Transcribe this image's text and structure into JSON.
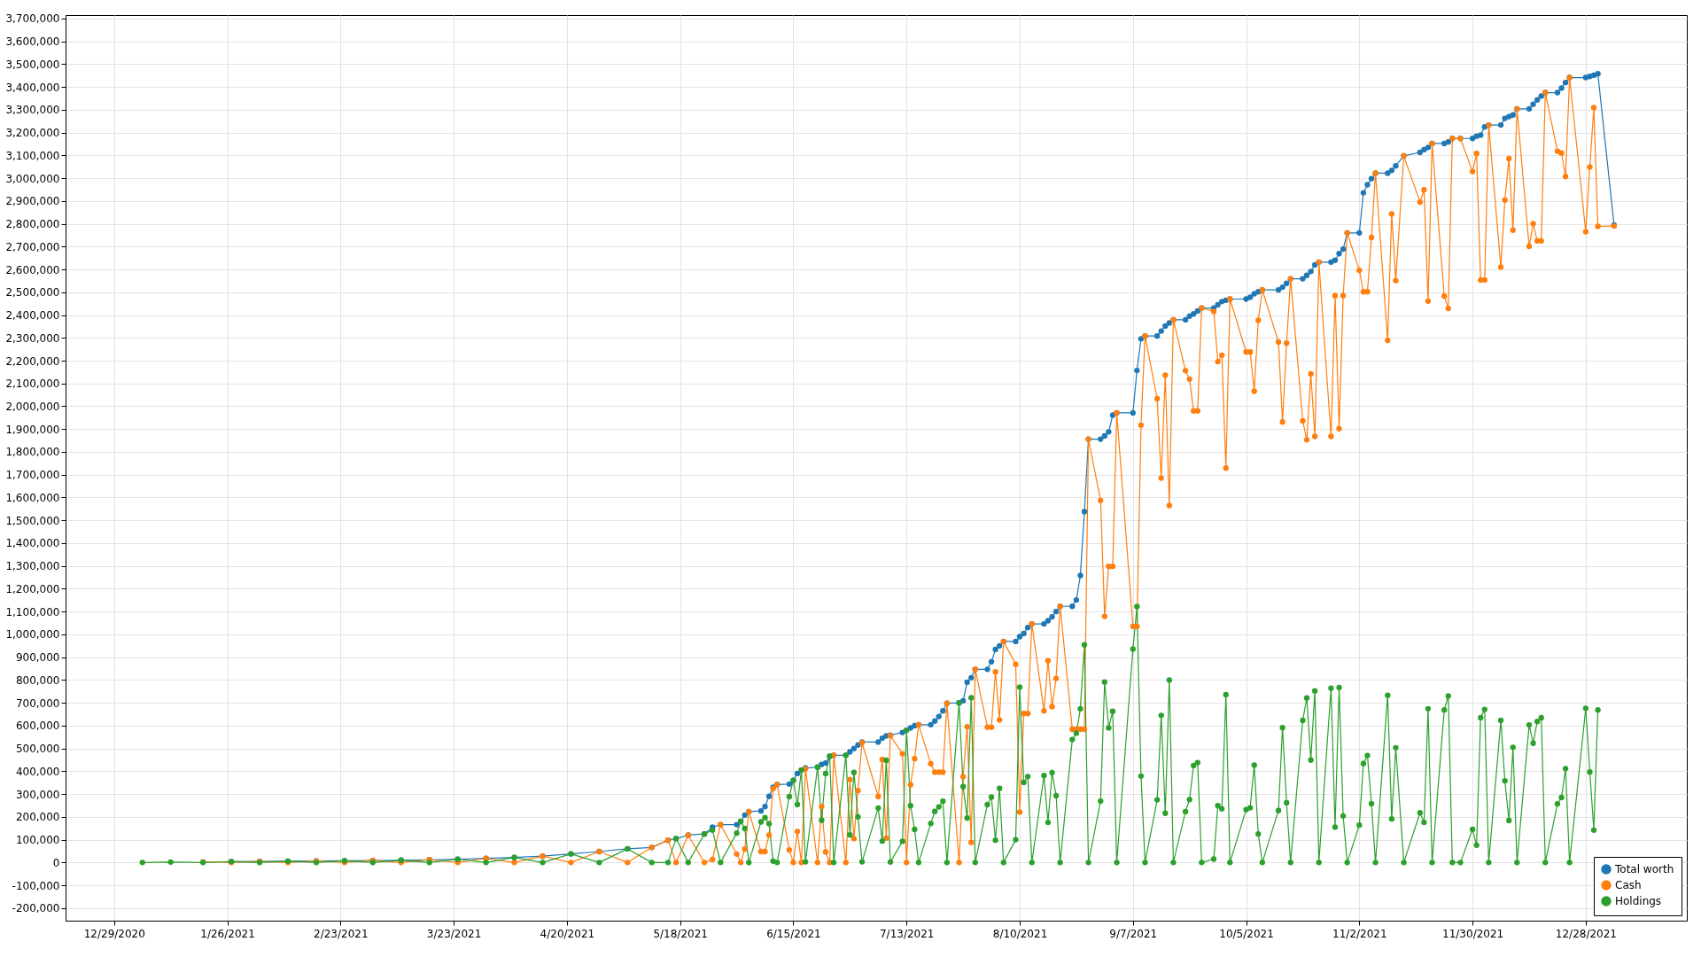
{
  "chart_data": {
    "type": "line",
    "marker": "circle",
    "line_style": "solid",
    "grid": true,
    "legend": "bottom right",
    "x": [
      "2021-01-05",
      "2021-01-12",
      "2021-01-20",
      "2021-01-27",
      "2021-02-03",
      "2021-02-10",
      "2021-02-17",
      "2021-02-24",
      "2021-03-03",
      "2021-03-10",
      "2021-03-17",
      "2021-03-24",
      "2021-03-31",
      "2021-04-07",
      "2021-04-14",
      "2021-04-21",
      "2021-04-28",
      "2021-05-05",
      "2021-05-11",
      "2021-05-15",
      "2021-05-17",
      "2021-05-20",
      "2021-05-24",
      "2021-05-26",
      "2021-05-28",
      "2021-06-01",
      "2021-06-02",
      "2021-06-03",
      "2021-06-04",
      "2021-06-07",
      "2021-06-08",
      "2021-06-09",
      "2021-06-10",
      "2021-06-11",
      "2021-06-14",
      "2021-06-15",
      "2021-06-16",
      "2021-06-17",
      "2021-06-18",
      "2021-06-21",
      "2021-06-22",
      "2021-06-23",
      "2021-06-24",
      "2021-06-25",
      "2021-06-28",
      "2021-06-29",
      "2021-06-30",
      "2021-07-01",
      "2021-07-02",
      "2021-07-06",
      "2021-07-07",
      "2021-07-08",
      "2021-07-09",
      "2021-07-12",
      "2021-07-13",
      "2021-07-14",
      "2021-07-15",
      "2021-07-16",
      "2021-07-19",
      "2021-07-20",
      "2021-07-21",
      "2021-07-22",
      "2021-07-23",
      "2021-07-26",
      "2021-07-27",
      "2021-07-28",
      "2021-07-29",
      "2021-07-30",
      "2021-08-02",
      "2021-08-03",
      "2021-08-04",
      "2021-08-05",
      "2021-08-06",
      "2021-08-09",
      "2021-08-10",
      "2021-08-11",
      "2021-08-12",
      "2021-08-13",
      "2021-08-16",
      "2021-08-17",
      "2021-08-18",
      "2021-08-19",
      "2021-08-20",
      "2021-08-23",
      "2021-08-24",
      "2021-08-25",
      "2021-08-26",
      "2021-08-27",
      "2021-08-30",
      "2021-08-31",
      "2021-09-01",
      "2021-09-02",
      "2021-09-03",
      "2021-09-07",
      "2021-09-08",
      "2021-09-09",
      "2021-09-10",
      "2021-09-13",
      "2021-09-14",
      "2021-09-15",
      "2021-09-16",
      "2021-09-17",
      "2021-09-20",
      "2021-09-21",
      "2021-09-22",
      "2021-09-23",
      "2021-09-24",
      "2021-09-27",
      "2021-09-28",
      "2021-09-29",
      "2021-09-30",
      "2021-10-01",
      "2021-10-05",
      "2021-10-06",
      "2021-10-07",
      "2021-10-08",
      "2021-10-09",
      "2021-10-13",
      "2021-10-14",
      "2021-10-15",
      "2021-10-16",
      "2021-10-19",
      "2021-10-20",
      "2021-10-21",
      "2021-10-22",
      "2021-10-23",
      "2021-10-26",
      "2021-10-27",
      "2021-10-28",
      "2021-10-29",
      "2021-10-30",
      "2021-11-02",
      "2021-11-03",
      "2021-11-04",
      "2021-11-05",
      "2021-11-06",
      "2021-11-09",
      "2021-11-10",
      "2021-11-11",
      "2021-11-13",
      "2021-11-17",
      "2021-11-18",
      "2021-11-19",
      "2021-11-20",
      "2021-11-23",
      "2021-11-24",
      "2021-11-25",
      "2021-11-27",
      "2021-11-30",
      "2021-12-01",
      "2021-12-02",
      "2021-12-03",
      "2021-12-04",
      "2021-12-07",
      "2021-12-08",
      "2021-12-09",
      "2021-12-10",
      "2021-12-11",
      "2021-12-14",
      "2021-12-15",
      "2021-12-16",
      "2021-12-17",
      "2021-12-18",
      "2021-12-21",
      "2021-12-22",
      "2021-12-23",
      "2021-12-24",
      "2021-12-28",
      "2021-12-29",
      "2021-12-30",
      "2021-12-31",
      "2022-01-04"
    ],
    "series": [
      {
        "name": "Total worth",
        "color": "#1f77b4",
        "values": [
          null,
          null,
          null,
          4000,
          5000,
          6000,
          7000,
          8000,
          9000,
          10000,
          12000,
          14000,
          18000,
          22000,
          28000,
          38000,
          48000,
          60000,
          66000,
          98000,
          105000,
          120000,
          125000,
          155000,
          166000,
          166000,
          180000,
          208000,
          223000,
          226000,
          245000,
          290000,
          330000,
          342000,
          344000,
          360000,
          390000,
          405000,
          414000,
          418000,
          430000,
          436000,
          466000,
          470000,
          470000,
          485000,
          500000,
          515000,
          528000,
          528000,
          545000,
          555000,
          558000,
          570000,
          580000,
          590000,
          600000,
          604000,
          604000,
          620000,
          640000,
          665000,
          698000,
          700000,
          709000,
          790000,
          810000,
          847000,
          847000,
          880000,
          934000,
          950000,
          969000,
          969000,
          990000,
          1004000,
          1030000,
          1046000,
          1046000,
          1060000,
          1077000,
          1100000,
          1123000,
          1123000,
          1151000,
          1258000,
          1538000,
          1856000,
          1856000,
          1870000,
          1888000,
          1961000,
          1971000,
          1971000,
          2157000,
          2296000,
          2308000,
          2308000,
          2330000,
          2352000,
          2365000,
          2379000,
          2379000,
          2395000,
          2405000,
          2418000,
          2431000,
          2431000,
          2445000,
          2459000,
          2465000,
          2470000,
          2470000,
          2478000,
          2493000,
          2502000,
          2510000,
          2510000,
          2522000,
          2539000,
          2559000,
          2559000,
          2574000,
          2591000,
          2620000,
          2632000,
          2632000,
          2640000,
          2669000,
          2689000,
          2760000,
          2760000,
          2936000,
          2971000,
          2998000,
          3022000,
          3022000,
          3034000,
          3054000,
          3098000,
          3113000,
          3125000,
          3135000,
          3152000,
          3152000,
          3159000,
          3174000,
          3174000,
          3174000,
          3184000,
          3189000,
          3225000,
          3233000,
          3233000,
          3262000,
          3270000,
          3277000,
          3304000,
          3304000,
          3324000,
          3343000,
          3360000,
          3375000,
          3375000,
          3395000,
          3419000,
          3441000,
          3441000,
          3446000,
          3451000,
          3458000,
          2795000
        ]
      },
      {
        "name": "Cash",
        "color": "#ff7f0e",
        "values": [
          null,
          null,
          3000,
          0,
          5000,
          0,
          7000,
          0,
          9000,
          0,
          12000,
          0,
          18000,
          0,
          28000,
          0,
          48000,
          0,
          66000,
          98000,
          0,
          120000,
          0,
          13000,
          166000,
          37000,
          0,
          59000,
          223000,
          48000,
          48000,
          120000,
          324000,
          342000,
          55000,
          0,
          136000,
          0,
          411000,
          0,
          245000,
          46000,
          0,
          470000,
          0,
          364000,
          105000,
          315000,
          525000,
          289000,
          451000,
          107000,
          556000,
          477000,
          0,
          341000,
          455000,
          604000,
          433000,
          396000,
          396000,
          396000,
          698000,
          0,
          376000,
          595000,
          88000,
          847000,
          593000,
          593000,
          836000,
          625000,
          969000,
          869000,
          221000,
          653000,
          653000,
          1046000,
          665000,
          884000,
          683000,
          807000,
          1123000,
          584000,
          584000,
          584000,
          584000,
          1856000,
          1587000,
          1079000,
          1298000,
          1298000,
          1971000,
          1035000,
          1035000,
          1917000,
          2308000,
          2033000,
          1685000,
          2136000,
          1565000,
          2379000,
          2156000,
          2119000,
          1980000,
          1980000,
          2431000,
          2416000,
          2196000,
          2224000,
          1729000,
          2470000,
          2238000,
          2238000,
          2066000,
          2377000,
          2510000,
          2282000,
          1931000,
          2277000,
          2559000,
          1936000,
          1853000,
          2142000,
          1868000,
          2632000,
          1868000,
          2485000,
          1902000,
          2485000,
          2760000,
          2596000,
          2502000,
          2502000,
          2740000,
          3022000,
          2289000,
          2843000,
          2551000,
          3098000,
          2895000,
          2949000,
          2461000,
          3152000,
          2483000,
          2429000,
          3174000,
          3174000,
          3029000,
          3108000,
          2554000,
          2554000,
          3233000,
          2610000,
          2904000,
          3086000,
          2772000,
          3304000,
          2701000,
          2801000,
          2725000,
          2725000,
          3375000,
          3118000,
          3110000,
          3007000,
          3441000,
          2765000,
          3049000,
          3309000,
          2789000,
          2790000
        ]
      },
      {
        "name": "Holdings",
        "color": "#2ca02c",
        "values": [
          0,
          2000,
          0,
          4000,
          0,
          6000,
          0,
          8000,
          0,
          10000,
          0,
          14000,
          0,
          22000,
          0,
          38000,
          0,
          60000,
          0,
          0,
          105000,
          0,
          125000,
          142000,
          0,
          129000,
          180000,
          149000,
          0,
          178000,
          197000,
          170000,
          6000,
          0,
          289000,
          360000,
          254000,
          405000,
          3000,
          418000,
          185000,
          390000,
          466000,
          0,
          470000,
          121000,
          395000,
          200000,
          3000,
          239000,
          94000,
          448000,
          2000,
          93000,
          580000,
          249000,
          145000,
          0,
          171000,
          224000,
          244000,
          269000,
          0,
          700000,
          333000,
          195000,
          722000,
          0,
          254000,
          287000,
          98000,
          325000,
          0,
          100000,
          769000,
          351000,
          377000,
          0,
          381000,
          176000,
          394000,
          293000,
          0,
          539000,
          567000,
          674000,
          954000,
          0,
          269000,
          791000,
          590000,
          663000,
          0,
          936000,
          1122000,
          379000,
          0,
          275000,
          645000,
          216000,
          800000,
          0,
          223000,
          276000,
          425000,
          438000,
          0,
          15000,
          249000,
          235000,
          736000,
          0,
          232000,
          240000,
          427000,
          125000,
          0,
          228000,
          591000,
          262000,
          0,
          623000,
          721000,
          449000,
          752000,
          0,
          764000,
          155000,
          767000,
          204000,
          0,
          164000,
          434000,
          469000,
          258000,
          0,
          733000,
          191000,
          503000,
          0,
          218000,
          176000,
          674000,
          0,
          669000,
          730000,
          0,
          0,
          145000,
          76000,
          635000,
          671000,
          0,
          623000,
          358000,
          184000,
          505000,
          0,
          603000,
          523000,
          618000,
          635000,
          0,
          257000,
          285000,
          412000,
          0,
          676000,
          397000,
          142000,
          669000,
          null
        ]
      }
    ],
    "xlim": [
      "2020-12-17",
      "2022-01-22"
    ],
    "xticks": [
      {
        "value": "2020-12-29",
        "label": "12/29/2020"
      },
      {
        "value": "2021-01-26",
        "label": "1/26/2021"
      },
      {
        "value": "2021-02-23",
        "label": "2/23/2021"
      },
      {
        "value": "2021-03-23",
        "label": "3/23/2021"
      },
      {
        "value": "2021-04-20",
        "label": "4/20/2021"
      },
      {
        "value": "2021-05-18",
        "label": "5/18/2021"
      },
      {
        "value": "2021-06-15",
        "label": "6/15/2021"
      },
      {
        "value": "2021-07-13",
        "label": "7/13/2021"
      },
      {
        "value": "2021-08-10",
        "label": "8/10/2021"
      },
      {
        "value": "2021-09-07",
        "label": "9/7/2021"
      },
      {
        "value": "2021-10-05",
        "label": "10/5/2021"
      },
      {
        "value": "2021-11-02",
        "label": "11/2/2021"
      },
      {
        "value": "2021-11-30",
        "label": "11/30/2021"
      },
      {
        "value": "2021-12-28",
        "label": "12/28/2021"
      }
    ],
    "ylim": [
      -255000,
      3715000
    ],
    "yticks": [
      {
        "value": -200000,
        "label": "-200,000"
      },
      {
        "value": -100000,
        "label": "-100,000"
      },
      0,
      {
        "value": 100000,
        "label": "100,000"
      },
      {
        "value": 200000,
        "label": "200,000"
      },
      {
        "value": 300000,
        "label": "300,000"
      },
      {
        "value": 400000,
        "label": "400,000"
      },
      {
        "value": 500000,
        "label": "500,000"
      },
      {
        "value": 600000,
        "label": "600,000"
      },
      {
        "value": 700000,
        "label": "700,000"
      },
      {
        "value": 800000,
        "label": "800,000"
      },
      {
        "value": 900000,
        "label": "900,000"
      },
      {
        "value": 1000000,
        "label": "1,000,000"
      },
      {
        "value": 1100000,
        "label": "1,100,000"
      },
      {
        "value": 1200000,
        "label": "1,200,000"
      },
      {
        "value": 1300000,
        "label": "1,300,000"
      },
      {
        "value": 1400000,
        "label": "1,400,000"
      },
      {
        "value": 1500000,
        "label": "1,500,000"
      },
      {
        "value": 1600000,
        "label": "1,600,000"
      },
      {
        "value": 1700000,
        "label": "1,700,000"
      },
      {
        "value": 1800000,
        "label": "1,800,000"
      },
      {
        "value": 1900000,
        "label": "1,900,000"
      },
      {
        "value": 2000000,
        "label": "2,000,000"
      },
      {
        "value": 2100000,
        "label": "2,100,000"
      },
      {
        "value": 2200000,
        "label": "2,200,000"
      },
      {
        "value": 2300000,
        "label": "2,300,000"
      },
      {
        "value": 2400000,
        "label": "2,400,000"
      },
      {
        "value": 2500000,
        "label": "2,500,000"
      },
      {
        "value": 2600000,
        "label": "2,600,000"
      },
      {
        "value": 2700000,
        "label": "2,700,000"
      },
      {
        "value": 2800000,
        "label": "2,800,000"
      },
      {
        "value": 2900000,
        "label": "2,900,000"
      },
      {
        "value": 3000000,
        "label": "3,000,000"
      },
      {
        "value": 3100000,
        "label": "3,100,000"
      },
      {
        "value": 3200000,
        "label": "3,200,000"
      },
      {
        "value": 3300000,
        "label": "3,300,000"
      },
      {
        "value": 3400000,
        "label": "3,400,000"
      },
      {
        "value": 3500000,
        "label": "3,500,000"
      },
      {
        "value": 3600000,
        "label": "3,600,000"
      },
      {
        "value": 3700000,
        "label": "3,700,000"
      }
    ]
  }
}
